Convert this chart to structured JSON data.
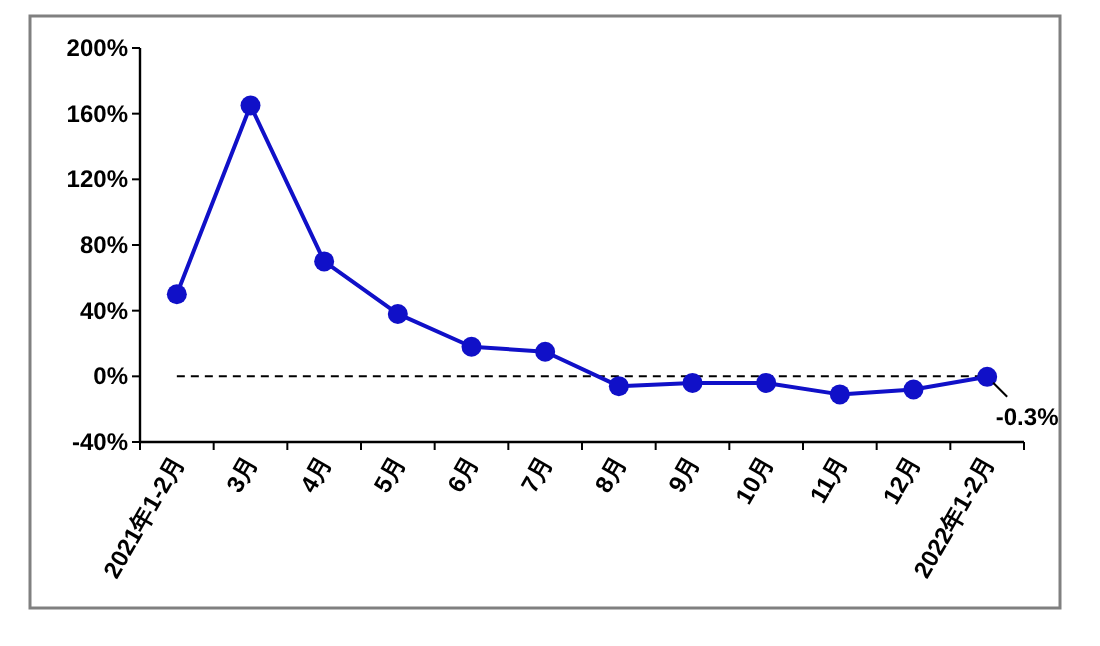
{
  "chart_data": {
    "type": "line",
    "categories": [
      "2021年1-2月",
      "3月",
      "4月",
      "5月",
      "6月",
      "7月",
      "8月",
      "9月",
      "10月",
      "11月",
      "12月",
      "2022年1-2月"
    ],
    "series": [
      {
        "color": "#1010c8",
        "values": [
          50,
          165,
          70,
          38,
          18,
          15,
          -6,
          -4,
          -4,
          -11,
          -8,
          -0.3
        ],
        "value_labels": [
          null,
          null,
          null,
          null,
          null,
          null,
          null,
          null,
          null,
          null,
          null,
          "-0.3%"
        ]
      }
    ],
    "ylim": [
      -40,
      200
    ],
    "yticks": [
      {
        "value": -40,
        "label": "-40%"
      },
      {
        "value": 0,
        "label": "0%"
      },
      {
        "value": 40,
        "label": "40%"
      },
      {
        "value": 80,
        "label": "80%"
      },
      {
        "value": 120,
        "label": "120%"
      },
      {
        "value": 160,
        "label": "160%"
      },
      {
        "value": 200,
        "label": "200%"
      }
    ],
    "ref_lines": [
      {
        "axis": "y",
        "value": 0,
        "color": "#000000",
        "line_style": "dashed"
      }
    ],
    "marker": "circle",
    "line_style": "solid",
    "grid": false
  }
}
